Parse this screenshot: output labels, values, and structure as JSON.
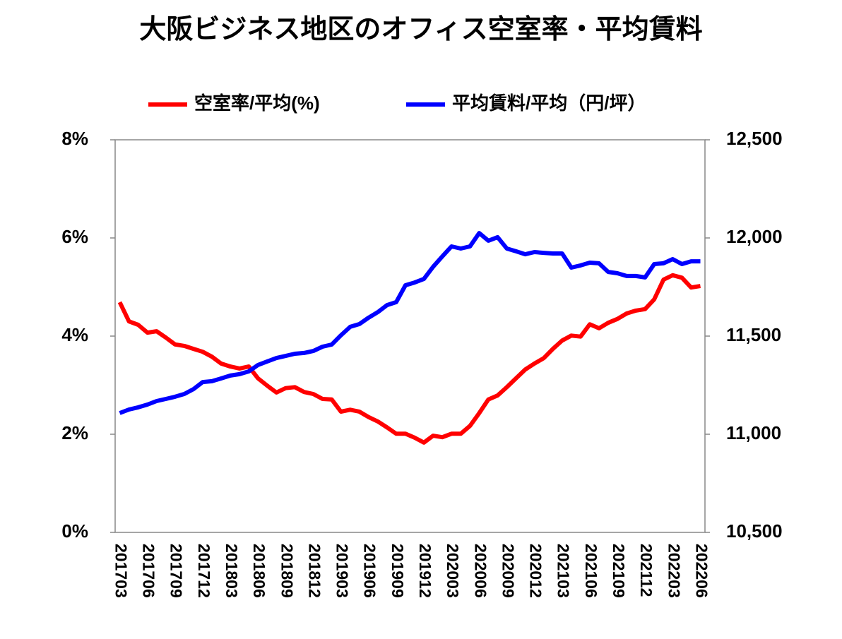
{
  "chart_data": {
    "type": "line",
    "title": "大阪ビジネス地区のオフィス空室率・平均賃料",
    "categories": [
      "201703",
      null,
      null,
      "201706",
      null,
      null,
      "201709",
      null,
      null,
      "201712",
      null,
      null,
      "201803",
      null,
      null,
      "201806",
      null,
      null,
      "201809",
      null,
      null,
      "201812",
      null,
      null,
      "201903",
      null,
      null,
      "201906",
      null,
      null,
      "201909",
      null,
      null,
      "201912",
      null,
      null,
      "202003",
      null,
      null,
      "202006",
      null,
      null,
      "202009",
      null,
      null,
      "202012",
      null,
      null,
      "202103",
      null,
      null,
      "202106",
      null,
      null,
      "202109",
      null,
      null,
      "202112",
      null,
      null,
      "202203",
      null,
      null,
      "202206"
    ],
    "series": [
      {
        "name": "空室率/平均(%)",
        "color": "#ff0000",
        "axis": "y",
        "values": [
          4.69,
          4.3,
          4.23,
          4.07,
          4.1,
          3.97,
          3.83,
          3.8,
          3.74,
          3.68,
          3.58,
          3.44,
          3.38,
          3.34,
          3.38,
          3.14,
          2.99,
          2.85,
          2.94,
          2.96,
          2.86,
          2.82,
          2.72,
          2.71,
          2.46,
          2.5,
          2.46,
          2.35,
          2.26,
          2.14,
          2.01,
          2.01,
          1.93,
          1.83,
          1.97,
          1.94,
          2.01,
          2.01,
          2.17,
          2.43,
          2.71,
          2.79,
          2.96,
          3.14,
          3.32,
          3.44,
          3.55,
          3.74,
          3.91,
          4.01,
          3.99,
          4.24,
          4.16,
          4.27,
          4.35,
          4.46,
          4.52,
          4.55,
          4.75,
          5.15,
          5.24,
          5.19,
          4.99,
          5.02
        ]
      },
      {
        "name": "平均賃料/平均（円/坪）",
        "color": "#0000ff",
        "axis": "y2",
        "values": [
          11108,
          11126,
          11137,
          11151,
          11169,
          11180,
          11191,
          11205,
          11230,
          11266,
          11270,
          11284,
          11299,
          11306,
          11320,
          11353,
          11371,
          11388,
          11399,
          11410,
          11414,
          11424,
          11446,
          11457,
          11504,
          11547,
          11561,
          11594,
          11622,
          11658,
          11673,
          11759,
          11773,
          11791,
          11853,
          11906,
          11957,
          11946,
          11957,
          12025,
          11986,
          12004,
          11946,
          11932,
          11917,
          11928,
          11924,
          11921,
          11921,
          11849,
          11860,
          11874,
          11871,
          11827,
          11820,
          11806,
          11806,
          11799,
          11867,
          11871,
          11892,
          11867,
          11881,
          11881
        ]
      }
    ],
    "ylim": [
      0,
      8
    ],
    "yticks": [
      {
        "value": 0,
        "label": "0%"
      },
      {
        "value": 2,
        "label": "2%"
      },
      {
        "value": 4,
        "label": "4%"
      },
      {
        "value": 6,
        "label": "6%"
      },
      {
        "value": 8,
        "label": "8%"
      }
    ],
    "y2lim": [
      10500,
      12500
    ],
    "y2ticks": [
      {
        "value": 10500,
        "label": "10,500"
      },
      {
        "value": 11000,
        "label": "11,000"
      },
      {
        "value": 11500,
        "label": "11,500"
      },
      {
        "value": 12000,
        "label": "12,000"
      },
      {
        "value": 12500,
        "label": "12,500"
      }
    ],
    "legend": "top",
    "grid": false
  }
}
